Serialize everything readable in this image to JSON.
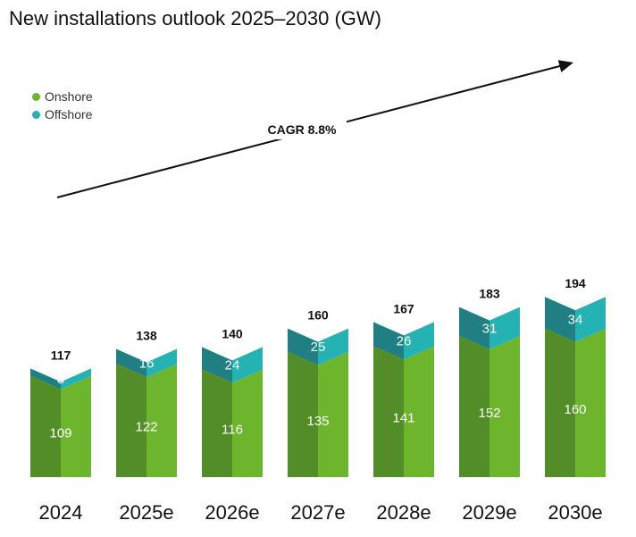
{
  "chart_data": {
    "type": "bar",
    "stacked": true,
    "title": "New installations outlook 2025–2030 (GW)",
    "categories": [
      "2024",
      "2025e",
      "2026e",
      "2027e",
      "2028e",
      "2029e",
      "2030e"
    ],
    "series": [
      {
        "name": "Onshore",
        "values": [
          109,
          122,
          116,
          135,
          141,
          152,
          160
        ],
        "color": "#6cb52d"
      },
      {
        "name": "Offshore",
        "values": [
          8,
          16,
          24,
          25,
          26,
          31,
          34
        ],
        "color": "#24b2b2"
      }
    ],
    "totals": [
      117,
      138,
      140,
      160,
      167,
      183,
      194
    ],
    "annotation": "CAGR 8.8%",
    "legend_position": "top-left",
    "grid": false,
    "xlabel": "",
    "ylabel": ""
  }
}
